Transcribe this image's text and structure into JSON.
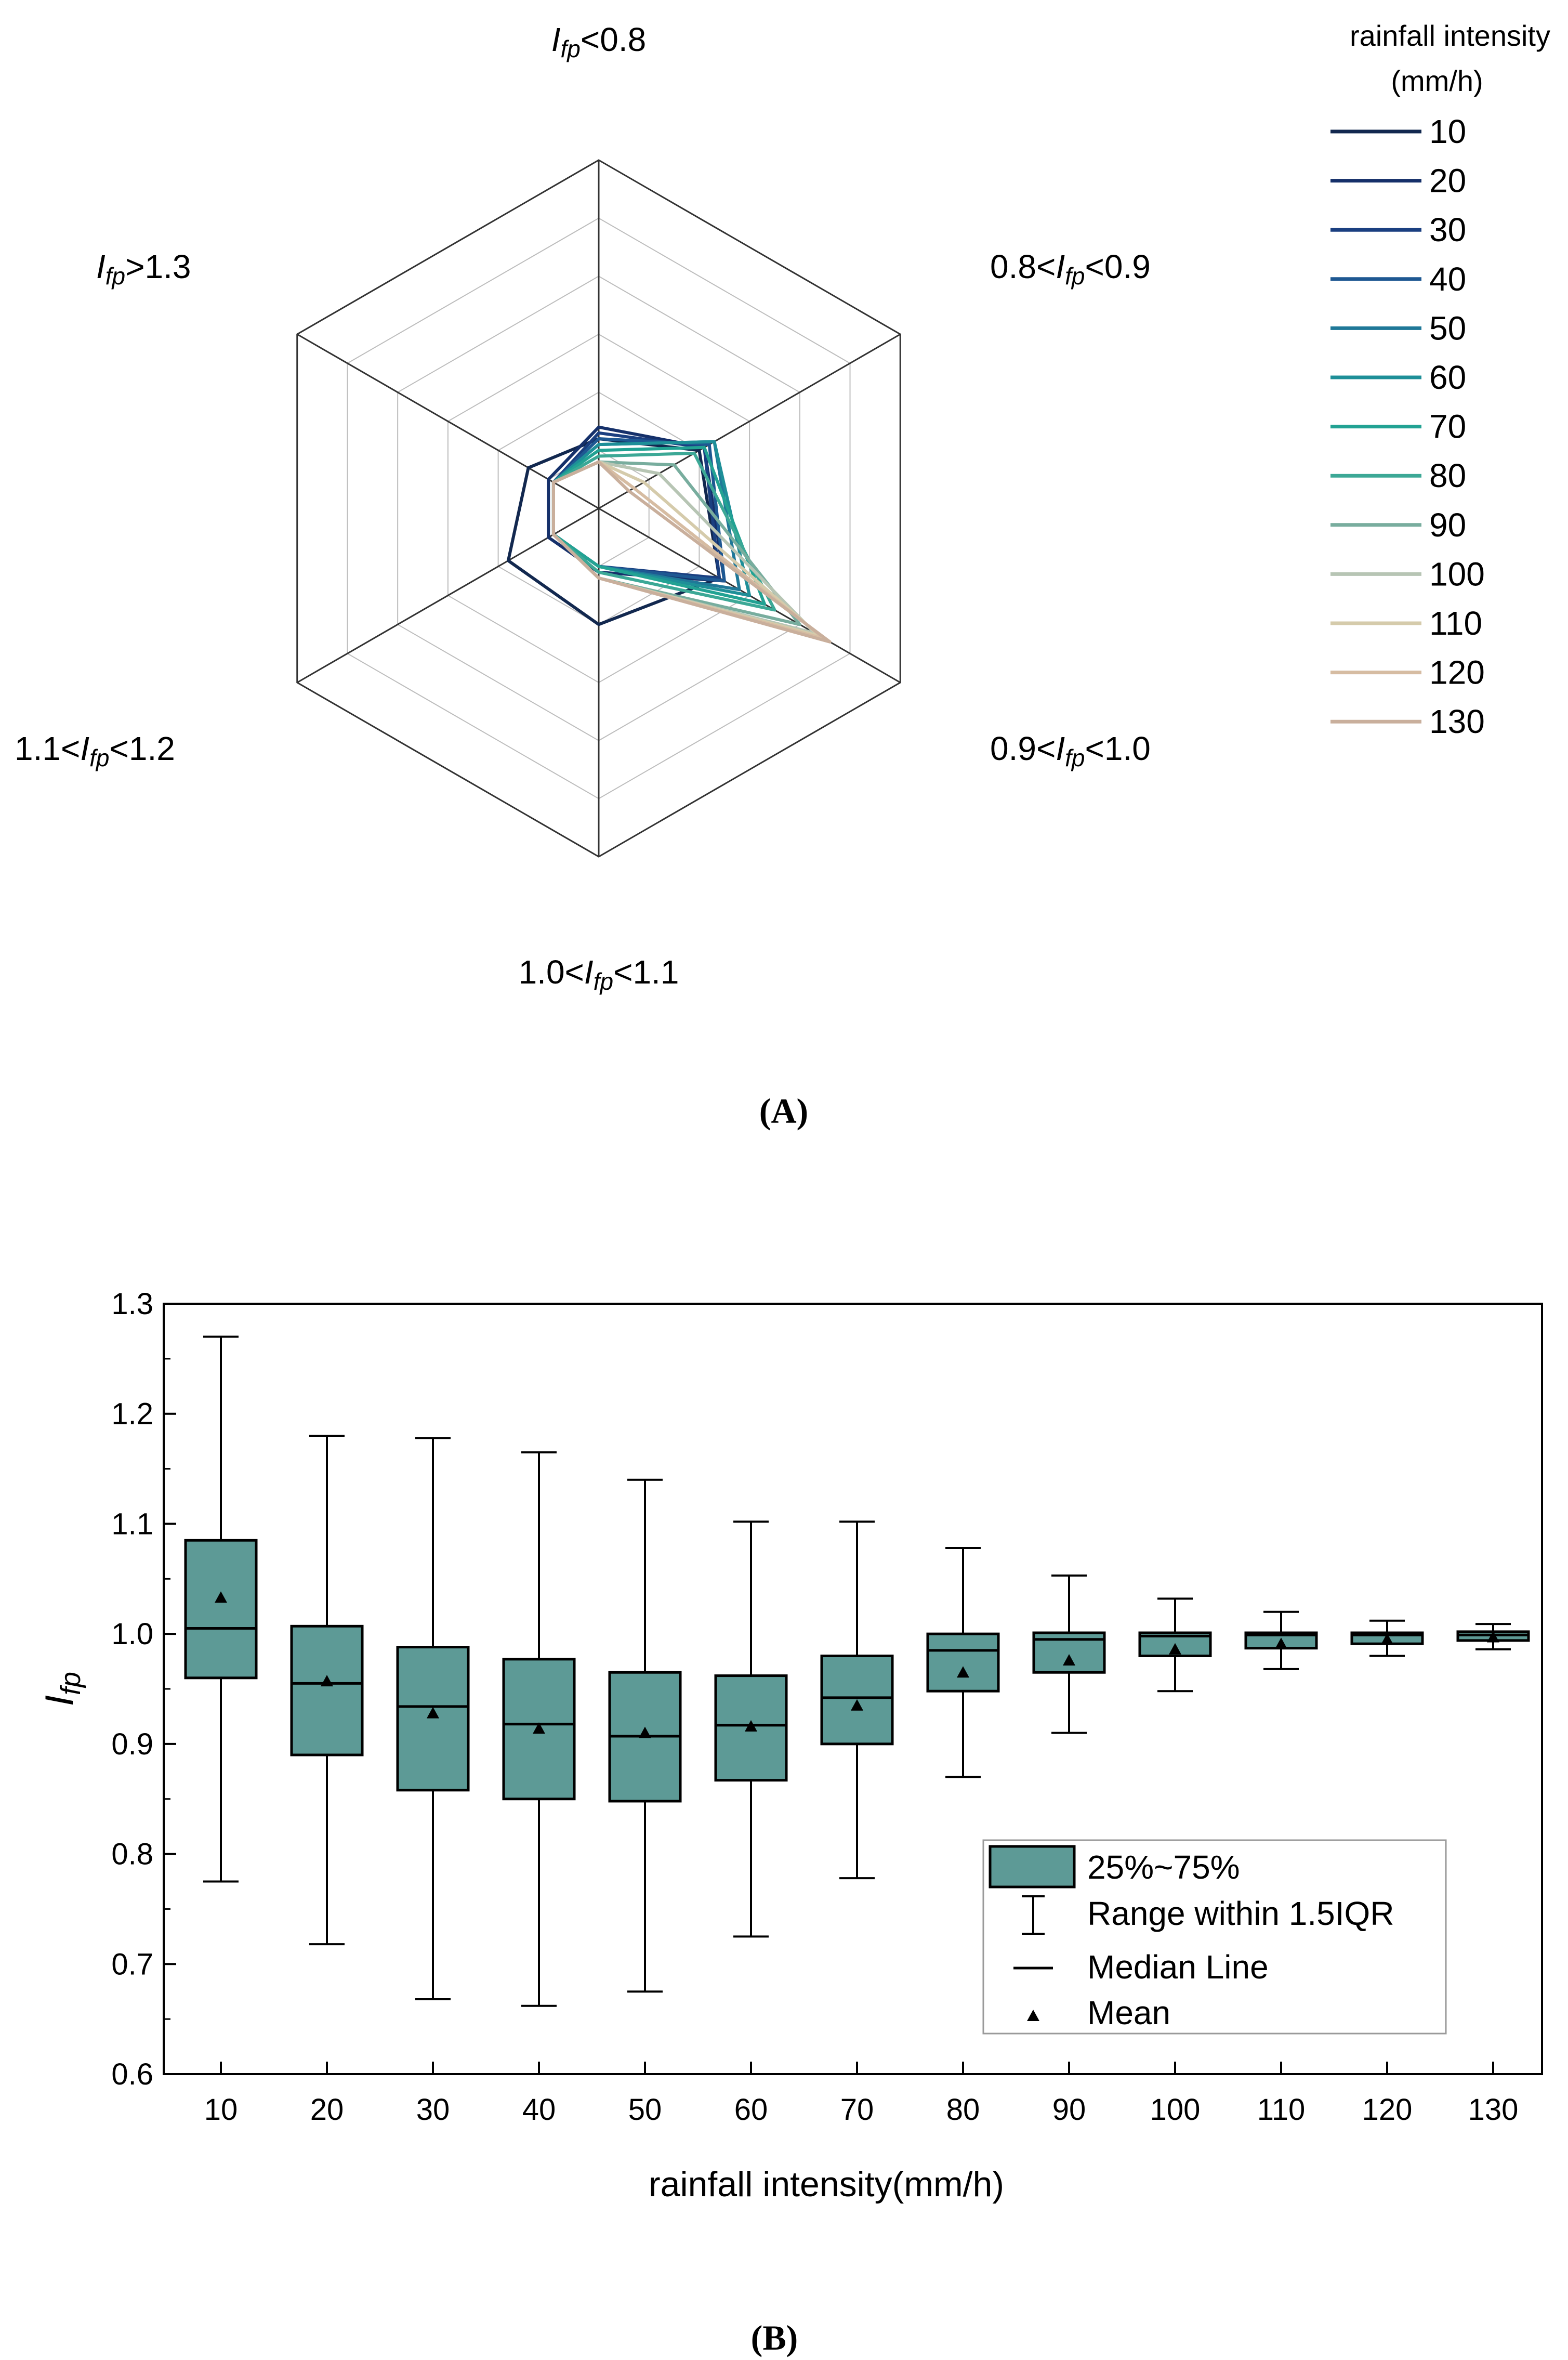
{
  "panel_labels": [
    "(A)",
    "(B)"
  ],
  "chart_data": [
    {
      "type": "radar",
      "panel": "A",
      "axes": [
        {
          "prefix": "",
          "suffix": "<0.8"
        },
        {
          "prefix": "0.8<",
          "suffix": "<0.9"
        },
        {
          "prefix": "0.9<",
          "suffix": "<1.0"
        },
        {
          "prefix": "1.0<",
          "suffix": "<1.1"
        },
        {
          "prefix": "1.1<",
          "suffix": "<1.2"
        },
        {
          "prefix": "",
          "suffix": ">1.3"
        }
      ],
      "variable_symbol": {
        "main": "I",
        "sub": "fp"
      },
      "rmax": 0.6,
      "rings": 6,
      "legend_title_line1": "rainfall intensity",
      "legend_title_line2": "(mm/h)",
      "colors": [
        "#12284f",
        "#15306a",
        "#1a3f80",
        "#1e5892",
        "#1f7898",
        "#1e8f98",
        "#22a293",
        "#3ca896",
        "#78ad9e",
        "#b7c5b4",
        "#d5cbab",
        "#d6bca2",
        "#c9af9c"
      ],
      "series": [
        {
          "name": "10",
          "values": [
            0.12,
            0.2,
            0.24,
            0.2,
            0.18,
            0.14
          ]
        },
        {
          "name": "20",
          "values": [
            0.14,
            0.21,
            0.25,
            0.11,
            0.1,
            0.1
          ]
        },
        {
          "name": "30",
          "values": [
            0.13,
            0.21,
            0.24,
            0.1,
            0.09,
            0.09
          ]
        },
        {
          "name": "40",
          "values": [
            0.12,
            0.22,
            0.25,
            0.1,
            0.09,
            0.09
          ]
        },
        {
          "name": "50",
          "values": [
            0.11,
            0.23,
            0.28,
            0.1,
            0.09,
            0.09
          ]
        },
        {
          "name": "60",
          "values": [
            0.11,
            0.23,
            0.3,
            0.1,
            0.09,
            0.09
          ]
        },
        {
          "name": "70",
          "values": [
            0.1,
            0.21,
            0.33,
            0.1,
            0.09,
            0.09
          ]
        },
        {
          "name": "80",
          "values": [
            0.09,
            0.19,
            0.35,
            0.11,
            0.09,
            0.09
          ]
        },
        {
          "name": "90",
          "values": [
            0.08,
            0.15,
            0.4,
            0.12,
            0.09,
            0.09
          ]
        },
        {
          "name": "100",
          "values": [
            0.08,
            0.12,
            0.43,
            0.12,
            0.09,
            0.09
          ]
        },
        {
          "name": "110",
          "values": [
            0.08,
            0.09,
            0.44,
            0.12,
            0.09,
            0.09
          ]
        },
        {
          "name": "120",
          "values": [
            0.08,
            0.07,
            0.45,
            0.12,
            0.09,
            0.09
          ]
        },
        {
          "name": "130",
          "values": [
            0.08,
            0.06,
            0.46,
            0.12,
            0.09,
            0.09
          ]
        }
      ]
    },
    {
      "type": "box",
      "panel": "B",
      "xlabel": "rainfall intensity(mm/h)",
      "ylabel": {
        "main": "I",
        "sub": "fp"
      },
      "ylim": [
        0.6,
        1.3
      ],
      "yticks": [
        "0.6",
        "0.7",
        "0.8",
        "0.9",
        "1.0",
        "1.1",
        "1.2",
        "1.3"
      ],
      "box_color": "#5d9a96",
      "categories": [
        "10",
        "20",
        "30",
        "40",
        "50",
        "60",
        "70",
        "80",
        "90",
        "100",
        "110",
        "120",
        "130"
      ],
      "boxes": [
        {
          "whisker_low": 0.775,
          "q1": 0.96,
          "median": 1.005,
          "q3": 1.085,
          "whisker_high": 1.27,
          "mean": 1.033
        },
        {
          "whisker_low": 0.718,
          "q1": 0.89,
          "median": 0.955,
          "q3": 1.007,
          "whisker_high": 1.18,
          "mean": 0.957
        },
        {
          "whisker_low": 0.668,
          "q1": 0.858,
          "median": 0.934,
          "q3": 0.988,
          "whisker_high": 1.178,
          "mean": 0.928
        },
        {
          "whisker_low": 0.662,
          "q1": 0.85,
          "median": 0.918,
          "q3": 0.977,
          "whisker_high": 1.165,
          "mean": 0.914
        },
        {
          "whisker_low": 0.675,
          "q1": 0.848,
          "median": 0.907,
          "q3": 0.965,
          "whisker_high": 1.14,
          "mean": 0.91
        },
        {
          "whisker_low": 0.725,
          "q1": 0.867,
          "median": 0.917,
          "q3": 0.962,
          "whisker_high": 1.102,
          "mean": 0.916
        },
        {
          "whisker_low": 0.778,
          "q1": 0.9,
          "median": 0.942,
          "q3": 0.98,
          "whisker_high": 1.102,
          "mean": 0.935
        },
        {
          "whisker_low": 0.87,
          "q1": 0.948,
          "median": 0.985,
          "q3": 1.0,
          "whisker_high": 1.078,
          "mean": 0.965
        },
        {
          "whisker_low": 0.91,
          "q1": 0.965,
          "median": 0.995,
          "q3": 1.001,
          "whisker_high": 1.053,
          "mean": 0.976
        },
        {
          "whisker_low": 0.948,
          "q1": 0.98,
          "median": 0.998,
          "q3": 1.001,
          "whisker_high": 1.032,
          "mean": 0.986
        },
        {
          "whisker_low": 0.968,
          "q1": 0.987,
          "median": 0.999,
          "q3": 1.001,
          "whisker_high": 1.02,
          "mean": 0.991
        },
        {
          "whisker_low": 0.98,
          "q1": 0.991,
          "median": 0.999,
          "q3": 1.001,
          "whisker_high": 1.012,
          "mean": 0.995
        },
        {
          "whisker_low": 0.986,
          "q1": 0.994,
          "median": 0.999,
          "q3": 1.002,
          "whisker_high": 1.009,
          "mean": 0.997
        }
      ],
      "legend": {
        "box": "25%~75%",
        "whisker": "Range within 1.5IQR",
        "median": "Median Line",
        "mean": "Mean"
      }
    }
  ]
}
